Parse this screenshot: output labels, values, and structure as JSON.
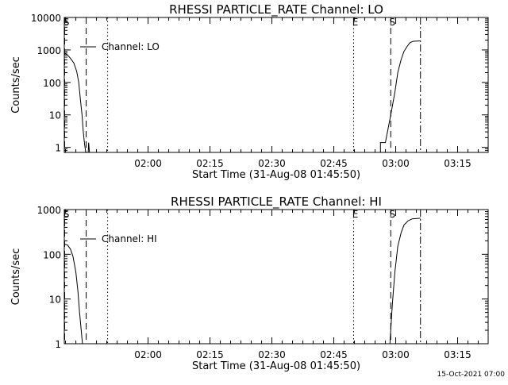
{
  "footer": {
    "timestamp": "15-Oct-2021 07:00"
  },
  "chart_data": [
    {
      "type": "line",
      "title": "RHESSI PARTICLE_RATE Channel: LO",
      "xlabel": "Start Time (31-Aug-08 01:45:50)",
      "ylabel": "Counts/sec",
      "yscale": "log",
      "xlim_minutes": [
        -5.3,
        97.4
      ],
      "ylim": [
        0.7,
        10000
      ],
      "x_ticks": [
        {
          "min": 15,
          "label": "02:00"
        },
        {
          "min": 30,
          "label": "02:15"
        },
        {
          "min": 45,
          "label": "02:30"
        },
        {
          "min": 60,
          "label": "02:45"
        },
        {
          "min": 75,
          "label": "03:00"
        },
        {
          "min": 90,
          "label": "03:15"
        }
      ],
      "y_ticks": [
        {
          "v": 1,
          "label": "1"
        },
        {
          "v": 10,
          "label": "10"
        },
        {
          "v": 100,
          "label": "100"
        },
        {
          "v": 1000,
          "label": "1000"
        },
        {
          "v": 10000,
          "label": "10000"
        }
      ],
      "legend": {
        "label": "Channel: LO",
        "placement": "top-left"
      },
      "markers": [
        {
          "min": -5.2,
          "style": "dashed",
          "label": "S"
        },
        {
          "min": 0.0,
          "style": "dashed",
          "label": ""
        },
        {
          "min": 5.2,
          "style": "dotted",
          "label": ""
        },
        {
          "min": 64.8,
          "style": "dotted",
          "label": "E"
        },
        {
          "min": 73.8,
          "style": "dashed",
          "label": "S"
        },
        {
          "min": 81.0,
          "style": "dashdot",
          "label": ""
        }
      ],
      "segments": [
        [
          [
            -5.3,
            800
          ],
          [
            -4.5,
            700
          ],
          [
            -3.8,
            550
          ],
          [
            -3.0,
            400
          ],
          [
            -2.3,
            220
          ],
          [
            -1.8,
            100
          ],
          [
            -1.4,
            30
          ],
          [
            -1.0,
            10
          ],
          [
            -0.7,
            3
          ],
          [
            -0.4,
            1.3
          ],
          [
            -0.1,
            0.7
          ]
        ],
        [
          [
            0.5,
            0.7
          ],
          [
            0.6,
            1.4
          ],
          [
            0.8,
            0.7
          ]
        ],
        [
          [
            71.3,
            0.7
          ],
          [
            71.3,
            1.4
          ],
          [
            72.5,
            1.4
          ],
          [
            73.0,
            3
          ],
          [
            73.8,
            10
          ],
          [
            74.8,
            50
          ],
          [
            75.5,
            200
          ],
          [
            76.3,
            500
          ],
          [
            77.0,
            900
          ],
          [
            77.8,
            1300
          ],
          [
            78.5,
            1700
          ],
          [
            79.3,
            1850
          ],
          [
            81.0,
            1900
          ]
        ]
      ]
    },
    {
      "type": "line",
      "title": "RHESSI PARTICLE_RATE Channel: HI",
      "xlabel": "Start Time (31-Aug-08 01:45:50)",
      "ylabel": "Counts/sec",
      "yscale": "log",
      "xlim_minutes": [
        -5.3,
        97.4
      ],
      "ylim": [
        1,
        1000
      ],
      "x_ticks": [
        {
          "min": 15,
          "label": "02:00"
        },
        {
          "min": 30,
          "label": "02:15"
        },
        {
          "min": 45,
          "label": "02:30"
        },
        {
          "min": 60,
          "label": "02:45"
        },
        {
          "min": 75,
          "label": "03:00"
        },
        {
          "min": 90,
          "label": "03:15"
        }
      ],
      "y_ticks": [
        {
          "v": 1,
          "label": "1"
        },
        {
          "v": 10,
          "label": "10"
        },
        {
          "v": 100,
          "label": "100"
        },
        {
          "v": 1000,
          "label": "1000"
        }
      ],
      "legend": {
        "label": "Channel: HI",
        "placement": "top-left"
      },
      "markers": [
        {
          "min": -5.2,
          "style": "dashed",
          "label": "S"
        },
        {
          "min": 0.0,
          "style": "dashed",
          "label": ""
        },
        {
          "min": 5.2,
          "style": "dotted",
          "label": ""
        },
        {
          "min": 64.8,
          "style": "dotted",
          "label": "E"
        },
        {
          "min": 73.8,
          "style": "dashed",
          "label": "S"
        },
        {
          "min": 81.0,
          "style": "dashdot",
          "label": ""
        }
      ],
      "segments": [
        [
          [
            -5.3,
            170
          ],
          [
            -4.5,
            160
          ],
          [
            -3.8,
            130
          ],
          [
            -3.2,
            90
          ],
          [
            -2.5,
            40
          ],
          [
            -2.0,
            15
          ],
          [
            -1.6,
            5
          ],
          [
            -1.2,
            2
          ],
          [
            -0.9,
            1
          ]
        ],
        [
          [
            73.6,
            1
          ],
          [
            73.8,
            2
          ],
          [
            74.2,
            8
          ],
          [
            74.8,
            40
          ],
          [
            75.5,
            150
          ],
          [
            76.3,
            300
          ],
          [
            77.0,
            450
          ],
          [
            78.0,
            560
          ],
          [
            79.0,
            620
          ],
          [
            81.0,
            640
          ]
        ]
      ]
    }
  ]
}
